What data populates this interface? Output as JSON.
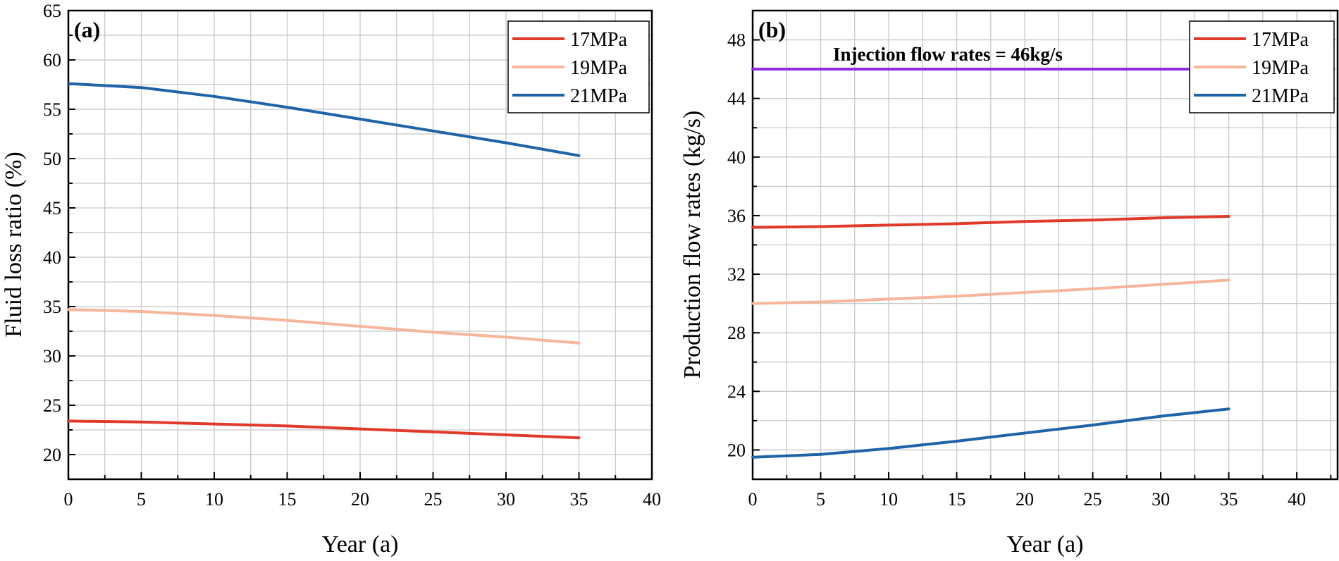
{
  "chart_data": [
    {
      "type": "line",
      "panel_label": "(a)",
      "xlabel": "Year (a)",
      "ylabel": "Fluid loss ratio (%)",
      "xlim": [
        0,
        40
      ],
      "ylim": [
        17.5,
        65
      ],
      "xticks": [
        0,
        5,
        10,
        15,
        20,
        25,
        30,
        35,
        40
      ],
      "yticks": [
        20,
        25,
        30,
        35,
        40,
        45,
        50,
        55,
        60,
        65
      ],
      "legend_position": "top-right",
      "series": [
        {
          "name": "17MPa",
          "color": "#e03a2a",
          "x": [
            0,
            5,
            10,
            15,
            20,
            25,
            30,
            35
          ],
          "y": [
            23.4,
            23.3,
            23.1,
            22.9,
            22.6,
            22.3,
            22.0,
            21.7
          ]
        },
        {
          "name": "19MPa",
          "color": "#f7b59b",
          "x": [
            0,
            5,
            10,
            15,
            20,
            25,
            30,
            35
          ],
          "y": [
            34.7,
            34.5,
            34.1,
            33.6,
            33.0,
            32.4,
            31.9,
            31.3
          ]
        },
        {
          "name": "21MPa",
          "color": "#1f63a8",
          "x": [
            0,
            5,
            10,
            15,
            20,
            25,
            30,
            35
          ],
          "y": [
            57.6,
            57.2,
            56.3,
            55.2,
            54.0,
            52.8,
            51.6,
            50.3
          ]
        }
      ]
    },
    {
      "type": "line",
      "panel_label": "(b)",
      "xlabel": "Year (a)",
      "ylabel": "Production flow rates (kg/s)",
      "annotation": "Injection flow rates = 46kg/s",
      "xlim": [
        0,
        43
      ],
      "ylim": [
        18,
        50
      ],
      "xticks": [
        0,
        5,
        10,
        15,
        20,
        25,
        30,
        35,
        40
      ],
      "yticks": [
        20,
        24,
        28,
        32,
        36,
        40,
        44,
        48
      ],
      "legend_position": "top-right",
      "series": [
        {
          "name": "Injection flow rates",
          "color": "#8a2be2",
          "x": [
            0,
            32
          ],
          "y": [
            46,
            46
          ],
          "in_legend": false
        },
        {
          "name": "17MPa",
          "color": "#e03a2a",
          "x": [
            0,
            5,
            10,
            15,
            20,
            25,
            30,
            35
          ],
          "y": [
            35.2,
            35.25,
            35.35,
            35.45,
            35.6,
            35.7,
            35.85,
            35.95
          ]
        },
        {
          "name": "19MPa",
          "color": "#f7b59b",
          "x": [
            0,
            5,
            10,
            15,
            20,
            25,
            30,
            35
          ],
          "y": [
            30.0,
            30.1,
            30.3,
            30.5,
            30.75,
            31.0,
            31.3,
            31.6
          ]
        },
        {
          "name": "21MPa",
          "color": "#1f63a8",
          "x": [
            0,
            5,
            10,
            15,
            20,
            25,
            30,
            35
          ],
          "y": [
            19.5,
            19.7,
            20.1,
            20.6,
            21.15,
            21.7,
            22.3,
            22.8
          ]
        }
      ]
    }
  ]
}
